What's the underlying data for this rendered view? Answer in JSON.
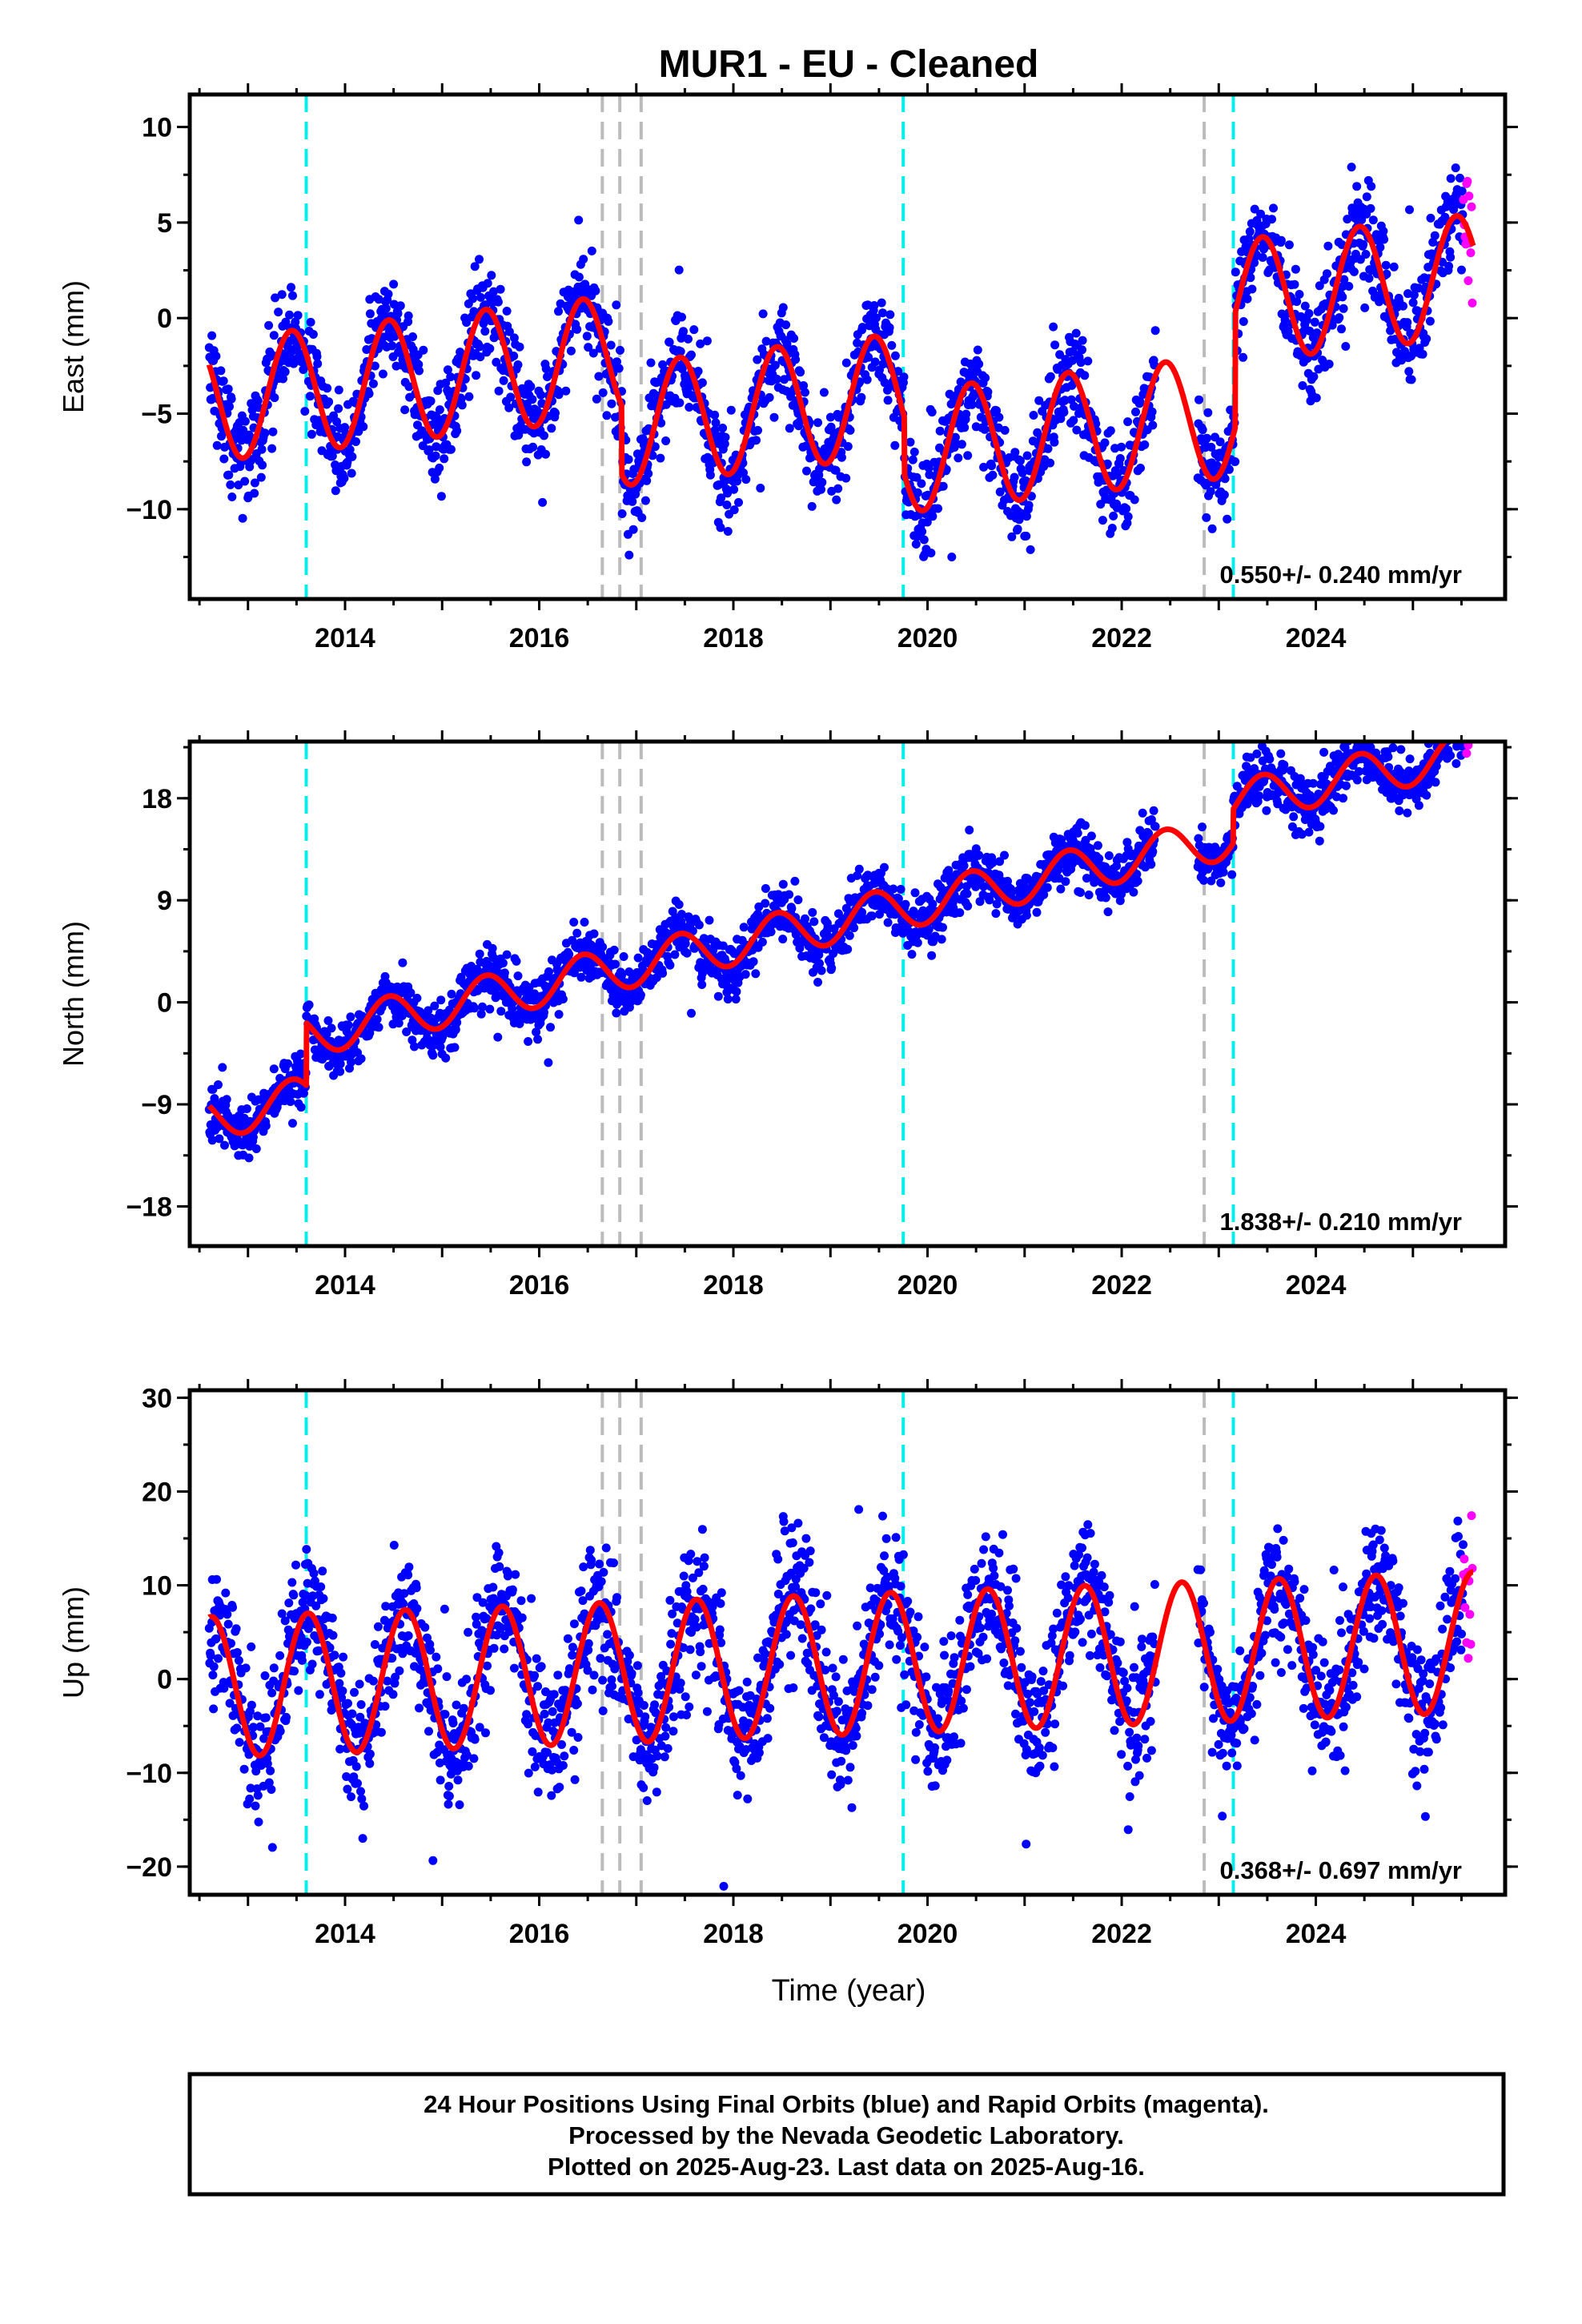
{
  "title": "MUR1  - EU - Cleaned",
  "x_axis_label": "Time (year)",
  "footer": {
    "line1": "24 Hour Positions Using Final Orbits (blue) and Rapid Orbits (magenta).",
    "line2": "Processed by the Nevada Geodetic Laboratory.",
    "line3": "Plotted on 2025-Aug-23. Last data on 2025-Aug-16."
  },
  "colors": {
    "final_orbits": "#0000ff",
    "rapid_orbits": "#ff00ff",
    "model_fit": "#ff0000",
    "equipment_change": "#00eeee",
    "earthquake_offset": "#bbbbbb"
  },
  "chart_data": [
    {
      "type": "scatter",
      "panel": "east",
      "ylabel": "East (mm)",
      "rate_text": "0.550+/- 0.240 mm/yr",
      "xlim": [
        2012.4,
        2025.95
      ],
      "ylim": [
        -14.7,
        11.7
      ],
      "xticks": [
        2014,
        2016,
        2018,
        2020,
        2022,
        2024
      ],
      "xtick_labels": [
        "2014",
        "2016",
        "2018",
        "2020",
        "2022",
        "2024"
      ],
      "yticks": [
        -10,
        -5,
        0,
        5,
        10
      ],
      "ytick_labels": [
        "−10",
        "−5",
        "0",
        "5",
        "10"
      ],
      "data_start": 2012.6,
      "final_end": 2025.52,
      "rapid_range": [
        2025.52,
        2025.62
      ],
      "trend_at_2019": -0.8,
      "rate": 0.55,
      "seasonal_amplitude": 3.2,
      "seasonal_peak": 0.45,
      "noise": 1.3,
      "offsets": [
        [
          2016.85,
          -3.6
        ],
        [
          2019.76,
          -3.0
        ],
        [
          2023.17,
          6.0
        ]
      ],
      "equipment_lines": [
        2013.6,
        2019.75,
        2023.15
      ],
      "earthquake_lines": [
        2016.65,
        2016.83,
        2017.05,
        2022.85
      ],
      "gaps": [
        [
          2022.35,
          2022.78
        ]
      ]
    },
    {
      "type": "scatter",
      "panel": "north",
      "ylabel": "North (mm)",
      "rate_text": "1.838+/- 0.210 mm/yr",
      "xlim": [
        2012.4,
        2025.95
      ],
      "ylim": [
        -21.5,
        23.0
      ],
      "xticks": [
        2014,
        2016,
        2018,
        2020,
        2022,
        2024
      ],
      "xtick_labels": [
        "2014",
        "2016",
        "2018",
        "2020",
        "2022",
        "2024"
      ],
      "yticks": [
        -18,
        -9,
        0,
        9,
        18
      ],
      "ytick_labels": [
        "−18",
        "−9",
        "0",
        "9",
        "18"
      ],
      "data_start": 2012.6,
      "final_end": 2025.52,
      "rapid_range": [
        2025.52,
        2025.62
      ],
      "trend_at_2019": 1.5,
      "rate": 1.838,
      "seasonal_amplitude": 1.9,
      "seasonal_peak": 0.45,
      "noise": 1.2,
      "offsets": [
        [
          2013.6,
          5.5
        ],
        [
          2023.15,
          3.0
        ]
      ],
      "equipment_lines": [
        2013.6,
        2019.75,
        2023.15
      ],
      "earthquake_lines": [
        2016.65,
        2016.83,
        2017.05,
        2022.85
      ],
      "gaps": [
        [
          2022.35,
          2022.78
        ]
      ]
    },
    {
      "type": "scatter",
      "panel": "up",
      "ylabel": "Up (mm)",
      "rate_text": "0.368+/- 0.697 mm/yr",
      "xlim": [
        2012.4,
        2025.95
      ],
      "ylim": [
        -23.0,
        30.8
      ],
      "xticks": [
        2014,
        2016,
        2018,
        2020,
        2022,
        2024
      ],
      "xtick_labels": [
        "2014",
        "2016",
        "2018",
        "2020",
        "2022",
        "2024"
      ],
      "yticks": [
        -20,
        -10,
        0,
        10,
        20,
        30
      ],
      "ytick_labels": [
        "−20",
        "−10",
        "0",
        "10",
        "20",
        "30"
      ],
      "data_start": 2012.6,
      "final_end": 2025.52,
      "rapid_range": [
        2025.52,
        2025.62
      ],
      "trend_at_2019": 1.5,
      "rate": 0.368,
      "seasonal_amplitude": 7.5,
      "seasonal_peak": 0.62,
      "noise": 3.5,
      "offsets": [],
      "equipment_lines": [
        2013.6,
        2019.75,
        2023.15
      ],
      "earthquake_lines": [
        2016.65,
        2016.83,
        2017.05,
        2022.85
      ],
      "gaps": [
        [
          2022.35,
          2022.78
        ]
      ]
    }
  ]
}
